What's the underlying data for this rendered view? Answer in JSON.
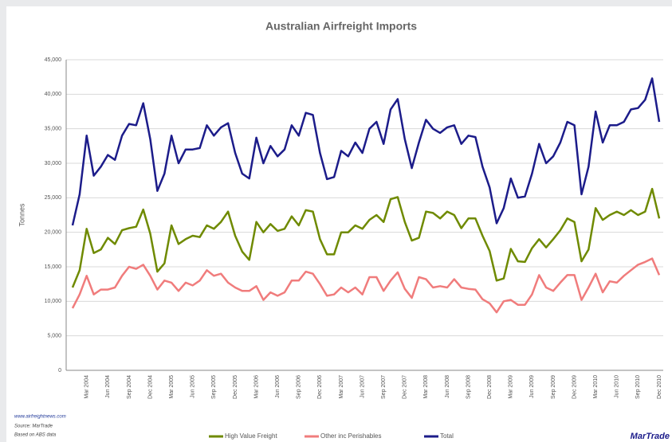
{
  "chart_data": {
    "type": "line",
    "title": "Australian Airfreight Imports",
    "y_label": "Tonnes",
    "categories": [
      null,
      null,
      "Mar 2004",
      null,
      null,
      "Jun 2004",
      null,
      null,
      "Sep 2004",
      null,
      null,
      "Dec 2004",
      null,
      null,
      "Mar 2005",
      null,
      null,
      "Jun 2005",
      null,
      null,
      "Sep 2005",
      null,
      null,
      "Dec 2005",
      null,
      null,
      "Mar 2006",
      null,
      null,
      "Jun 2006",
      null,
      null,
      "Sep 2006",
      null,
      null,
      "Dec 2006",
      null,
      null,
      "Mar 2007",
      null,
      null,
      "Jun 2007",
      null,
      null,
      "Sep 2007",
      null,
      null,
      "Dec 2007",
      null,
      null,
      "Mar 2008",
      null,
      null,
      "Jun 2008",
      null,
      null,
      "Sep 2008",
      null,
      null,
      "Dec 2008",
      null,
      null,
      "Mar 2009",
      null,
      null,
      "Jun 2009",
      null,
      null,
      "Sep 2009",
      null,
      null,
      "Dec 2009",
      null,
      null,
      "Mar 2010",
      null,
      null,
      "Jun 2010",
      null,
      null,
      "Sep 2010",
      null,
      null,
      "Dec 2010"
    ],
    "series": [
      {
        "name": "High Value Freight",
        "color": "#6f8a00",
        "values": [
          12000,
          14500,
          20500,
          17000,
          17500,
          19200,
          18300,
          20300,
          20600,
          20800,
          23300,
          19800,
          14300,
          15500,
          21000,
          18300,
          19000,
          19500,
          19300,
          21000,
          20500,
          21500,
          23000,
          19500,
          17200,
          16000,
          21500,
          20000,
          21200,
          20200,
          20500,
          22300,
          21000,
          23200,
          23000,
          19000,
          16800,
          16800,
          20000,
          20000,
          21000,
          20500,
          21800,
          22500,
          21500,
          24800,
          25100,
          21500,
          18800,
          19200,
          23000,
          22800,
          22000,
          23000,
          22500,
          20600,
          22000,
          22000,
          19500,
          17300,
          13000,
          13300,
          17600,
          15800,
          15700,
          17700,
          19000,
          17800,
          19000,
          20300,
          22000,
          21500,
          15800,
          17500,
          23500,
          21800,
          22500,
          23000,
          22500,
          23200,
          22500,
          23000,
          26300,
          22000
        ]
      },
      {
        "name": "Other inc Perishables",
        "color": "#f07c7c",
        "values": [
          9000,
          11000,
          13700,
          11000,
          11700,
          11700,
          12000,
          13700,
          15000,
          14700,
          15300,
          13700,
          11700,
          13000,
          12700,
          11500,
          12700,
          12300,
          13000,
          14500,
          13700,
          14000,
          12700,
          12000,
          11500,
          11500,
          12200,
          10200,
          11300,
          10800,
          11300,
          13000,
          13000,
          14300,
          14000,
          12500,
          10800,
          11000,
          12000,
          11300,
          12000,
          11000,
          13500,
          13500,
          11500,
          13000,
          14200,
          11800,
          10500,
          13500,
          13200,
          12000,
          12200,
          12000,
          13200,
          12000,
          11800,
          11700,
          10300,
          9700,
          8400,
          10000,
          10200,
          9500,
          9500,
          11000,
          13800,
          12000,
          11500,
          12700,
          13800,
          13800,
          10200,
          12000,
          14000,
          11300,
          12900,
          12700,
          13700,
          14500,
          15300,
          15700,
          16200,
          13800
        ]
      },
      {
        "name": "Total",
        "color": "#1c1c8a",
        "values": [
          21000,
          25500,
          34000,
          28200,
          29500,
          31200,
          30500,
          34000,
          35700,
          35500,
          38700,
          33500,
          26000,
          28500,
          34000,
          30000,
          32000,
          32000,
          32200,
          35500,
          34000,
          35200,
          35800,
          31500,
          28500,
          27800,
          33700,
          30000,
          32500,
          31000,
          32000,
          35500,
          34000,
          37300,
          37000,
          31500,
          27700,
          28000,
          31800,
          31000,
          33000,
          31500,
          35000,
          36000,
          32800,
          37800,
          39300,
          33500,
          29300,
          33000,
          36300,
          35000,
          34400,
          35200,
          35500,
          32800,
          34000,
          33800,
          29500,
          26500,
          21300,
          23500,
          27800,
          25000,
          25200,
          28500,
          32800,
          30000,
          31000,
          33000,
          36000,
          35500,
          25500,
          29500,
          37500,
          33000,
          35500,
          35500,
          36000,
          37800,
          38000,
          39200,
          42300,
          36000
        ]
      }
    ],
    "ylim": [
      0,
      45000
    ],
    "yticks": [
      0,
      {
        "value": 5000,
        "label": "5,000"
      },
      {
        "value": 10000,
        "label": "10,000"
      },
      {
        "value": 15000,
        "label": "15,000"
      },
      {
        "value": 20000,
        "label": "20,000"
      },
      {
        "value": 25000,
        "label": "25,000"
      },
      {
        "value": 30000,
        "label": "30,000"
      },
      {
        "value": 35000,
        "label": "35,000"
      },
      {
        "value": 40000,
        "label": "40,000"
      },
      {
        "value": 45000,
        "label": "45,000"
      }
    ],
    "grid": true,
    "legend": "bottom",
    "notes": [
      "www.airfreightnews.com",
      "Source: MarTrade",
      "Based on ABS data"
    ],
    "brand": "MarTrade"
  }
}
